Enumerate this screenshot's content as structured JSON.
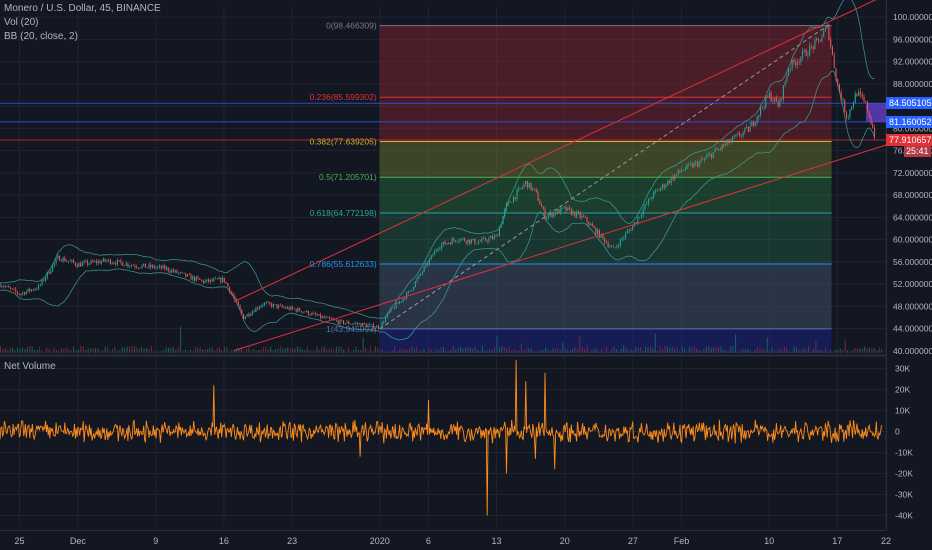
{
  "header": {
    "symbol_line": "Monero / U.S. Dollar, 45, BINANCE",
    "vol_indicator": "Vol (20)",
    "bb_indicator": "BB (20, close, 2)",
    "lower_pane_title": "Net Volume"
  },
  "colors": {
    "background": "#131722",
    "grid": "#1f2433",
    "text": "#b2b5be",
    "net_volume": "#ff8c1a",
    "channel": "#e0303a",
    "bb_band": "#3fa39a",
    "up_candle": "#26a69a",
    "down_candle": "#ef5350",
    "fib_0_236": "#b22833",
    "fib_0_382": "#8a9a33",
    "fib_0_5": "#2b8a3e",
    "fib_0_618": "#2e8a5a",
    "fib_0_786": "#2a5a8a",
    "fib_1": "#1a237e"
  },
  "price_labels": {
    "current_high": "84.505105",
    "current_mid": "81.160052",
    "last_price": "77.910657",
    "countdown": "25:41"
  },
  "chart_data": [
    {
      "type": "candlestick",
      "title": "Monero / U.S. Dollar, 45, BINANCE",
      "x_tick_labels": [
        "25",
        "Dec",
        "9",
        "16",
        "23",
        "2020",
        "6",
        "13",
        "20",
        "27",
        "Feb",
        "10",
        "17",
        "22"
      ],
      "y_tick_labels": [
        "100.000000",
        "96.000000",
        "92.000000",
        "88.000000",
        "84.000000",
        "80.000000",
        "76.000000",
        "72.000000",
        "68.000000",
        "64.000000",
        "60.000000",
        "56.000000",
        "52.000000",
        "48.000000",
        "44.000000",
        "40.000000"
      ],
      "y_ticks": [
        100,
        96,
        92,
        88,
        84,
        80,
        76,
        72,
        68,
        64,
        60,
        56,
        52,
        48,
        44,
        40
      ],
      "ylim": [
        39.6,
        102
      ],
      "x_range_days": [
        "2019-11-23",
        "2020-02-22"
      ],
      "price_path": [
        {
          "date": "2019-11-23",
          "close": 52.0
        },
        {
          "date": "2019-11-25",
          "close": 50.2
        },
        {
          "date": "2019-11-27",
          "close": 51.5
        },
        {
          "date": "2019-11-29",
          "close": 56.8
        },
        {
          "date": "2019-12-01",
          "close": 55.5
        },
        {
          "date": "2019-12-04",
          "close": 56.2
        },
        {
          "date": "2019-12-07",
          "close": 55.3
        },
        {
          "date": "2019-12-10",
          "close": 54.8
        },
        {
          "date": "2019-12-12",
          "close": 53.5
        },
        {
          "date": "2019-12-14",
          "close": 52.4
        },
        {
          "date": "2019-12-16",
          "close": 52.8
        },
        {
          "date": "2019-12-17",
          "close": 49.6
        },
        {
          "date": "2019-12-18",
          "close": 46.0
        },
        {
          "date": "2019-12-20",
          "close": 48.5
        },
        {
          "date": "2019-12-22",
          "close": 47.8
        },
        {
          "date": "2019-12-24",
          "close": 47.2
        },
        {
          "date": "2019-12-26",
          "close": 46.0
        },
        {
          "date": "2019-12-28",
          "close": 45.1
        },
        {
          "date": "2019-12-30",
          "close": 44.8
        },
        {
          "date": "2020-01-01",
          "close": 44.2
        },
        {
          "date": "2020-01-02",
          "close": 47.0
        },
        {
          "date": "2020-01-04",
          "close": 50.5
        },
        {
          "date": "2020-01-06",
          "close": 56.0
        },
        {
          "date": "2020-01-07",
          "close": 58.8
        },
        {
          "date": "2020-01-09",
          "close": 60.2
        },
        {
          "date": "2020-01-11",
          "close": 59.5
        },
        {
          "date": "2020-01-13",
          "close": 60.5
        },
        {
          "date": "2020-01-14",
          "close": 66.0
        },
        {
          "date": "2020-01-16",
          "close": 70.2
        },
        {
          "date": "2020-01-17",
          "close": 68.5
        },
        {
          "date": "2020-01-18",
          "close": 64.2
        },
        {
          "date": "2020-01-20",
          "close": 65.5
        },
        {
          "date": "2020-01-22",
          "close": 63.8
        },
        {
          "date": "2020-01-24",
          "close": 60.0
        },
        {
          "date": "2020-01-25",
          "close": 58.2
        },
        {
          "date": "2020-01-27",
          "close": 62.5
        },
        {
          "date": "2020-01-29",
          "close": 68.0
        },
        {
          "date": "2020-02-01",
          "close": 72.5
        },
        {
          "date": "2020-02-03",
          "close": 74.0
        },
        {
          "date": "2020-02-05",
          "close": 76.5
        },
        {
          "date": "2020-02-08",
          "close": 80.0
        },
        {
          "date": "2020-02-10",
          "close": 86.0
        },
        {
          "date": "2020-02-11",
          "close": 84.0
        },
        {
          "date": "2020-02-12",
          "close": 91.0
        },
        {
          "date": "2020-02-14",
          "close": 94.0
        },
        {
          "date": "2020-02-15",
          "close": 95.5
        },
        {
          "date": "2020-02-16",
          "close": 98.2
        },
        {
          "date": "2020-02-17",
          "close": 88.0
        },
        {
          "date": "2020-02-18",
          "close": 82.0
        },
        {
          "date": "2020-02-19",
          "close": 86.5
        },
        {
          "date": "2020-02-20",
          "close": 84.0
        },
        {
          "date": "2020-02-21",
          "close": 77.9
        }
      ],
      "fibonacci_retracement": {
        "start_date": "2020-01-01",
        "end_date": "2020-02-16",
        "levels": [
          {
            "ratio": "0",
            "price": 98.466309,
            "label": "0(98.466309)"
          },
          {
            "ratio": "0.236",
            "price": 85.599302,
            "label": "0.236(85.599302)"
          },
          {
            "ratio": "0.382",
            "price": 77.639205,
            "label": "0.382(77.639205)"
          },
          {
            "ratio": "0.5",
            "price": 71.205701,
            "label": "0.5(71.205701)"
          },
          {
            "ratio": "0.618",
            "price": 64.772198,
            "label": "0.618(64.772198)"
          },
          {
            "ratio": "0.786",
            "price": 55.612633,
            "label": "0.786(55.612633)"
          },
          {
            "ratio": "1",
            "price": 43.945093,
            "label": "1(43.945093)"
          }
        ]
      },
      "horizontal_levels": [
        84.505105,
        81.160052,
        77.910657
      ],
      "ascending_channel": {
        "lower": [
          {
            "date": "2019-12-17",
            "price": 40.0
          },
          {
            "date": "2020-02-22",
            "price": 77.0
          }
        ],
        "upper": [
          {
            "date": "2019-12-17",
            "price": 48.8
          },
          {
            "date": "2020-02-22",
            "price": 104.0
          }
        ]
      }
    },
    {
      "type": "bar",
      "title": "Net Volume",
      "y_tick_labels": [
        "30K",
        "20K",
        "10K",
        "0",
        "-10K",
        "-20K",
        "-30K",
        "-40K"
      ],
      "y_ticks": [
        30000,
        20000,
        10000,
        0,
        -10000,
        -20000,
        -30000,
        -40000
      ],
      "ylim": [
        -45000,
        35000
      ],
      "typical_range": [
        -6000,
        6000
      ],
      "spikes": [
        {
          "date": "2019-12-15",
          "value": 22000
        },
        {
          "date": "2019-12-30",
          "value": -12000
        },
        {
          "date": "2020-01-06",
          "value": 15000
        },
        {
          "date": "2020-01-12",
          "value": -40000
        },
        {
          "date": "2020-01-14",
          "value": -20000
        },
        {
          "date": "2020-01-15",
          "value": 34000
        },
        {
          "date": "2020-01-16",
          "value": 24000
        },
        {
          "date": "2020-01-17",
          "value": -13000
        },
        {
          "date": "2020-01-18",
          "value": 28000
        },
        {
          "date": "2020-01-19",
          "value": -18000
        }
      ]
    }
  ]
}
